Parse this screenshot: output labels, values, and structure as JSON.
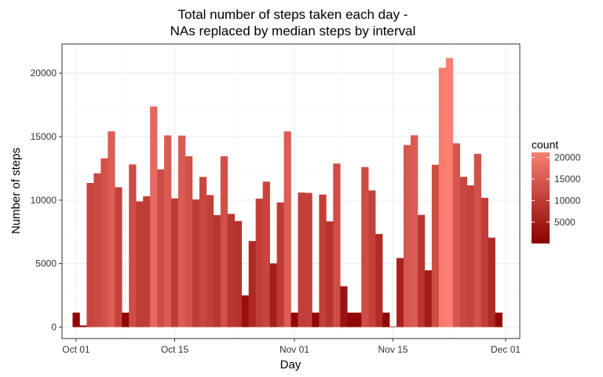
{
  "chart_data": {
    "type": "bar",
    "title": "Total number of steps taken each day -",
    "subtitle": "NAs replaced by median steps by interval",
    "xlabel": "Day",
    "ylabel": "Number of steps",
    "x_start": "2012-10-01",
    "x_ticks": [
      {
        "date": "2012-10-01",
        "label": "Oct 01"
      },
      {
        "date": "2012-10-15",
        "label": "Oct 15"
      },
      {
        "date": "2012-11-01",
        "label": "Nov 01"
      },
      {
        "date": "2012-11-15",
        "label": "Nov 15"
      },
      {
        "date": "2012-12-01",
        "label": "Dec 01"
      }
    ],
    "xlim": [
      "2012-09-29",
      "2012-12-03"
    ],
    "ylim": [
      -900,
      22300
    ],
    "y_ticks": [
      0,
      5000,
      10000,
      15000,
      20000
    ],
    "values": [
      1141,
      126,
      11352,
      12116,
      13294,
      15420,
      11015,
      1141,
      12811,
      9900,
      10304,
      17382,
      12426,
      15098,
      10139,
      15084,
      13452,
      10056,
      11829,
      10395,
      8821,
      13460,
      8918,
      8355,
      2492,
      6778,
      10119,
      11458,
      5018,
      9819,
      15414,
      1141,
      10600,
      10571,
      1141,
      10439,
      8334,
      12883,
      3219,
      1141,
      1141,
      12608,
      10765,
      7336,
      1141,
      41,
      5441,
      14339,
      15110,
      8841,
      4472,
      12787,
      20427,
      21194,
      14478,
      11834,
      11162,
      13646,
      10183,
      7047,
      1141
    ],
    "legend": {
      "title": "count",
      "ticks": [
        5000,
        10000,
        15000,
        20000
      ],
      "low_color": "#8B0000",
      "high_color": "#FA8072",
      "min": 41,
      "max": 21194,
      "placement": "right"
    },
    "grid": true
  }
}
